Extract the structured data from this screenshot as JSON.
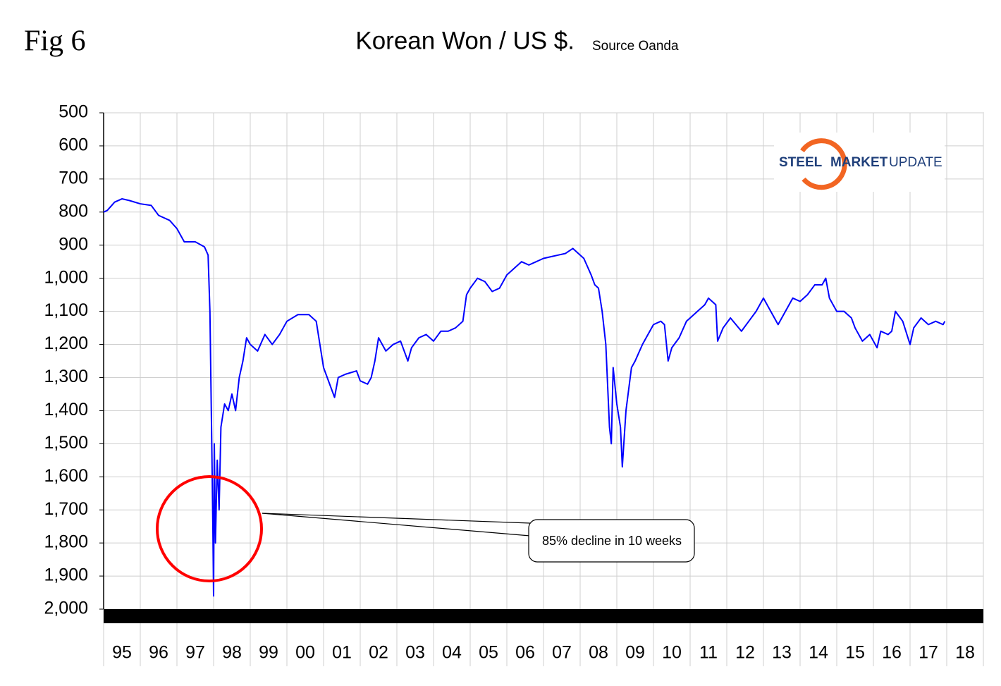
{
  "chart_data": {
    "type": "line",
    "label": "Fig 6",
    "title": "Korean Won / US $.",
    "subtitle": "Source Oanda",
    "annotation": "85% decline in 10 weeks",
    "logo": [
      "STEEL",
      "MARKET",
      "UPDATE"
    ],
    "y_inverted": true,
    "grid": true,
    "xlim": [
      1995,
      2019
    ],
    "ylim": [
      500,
      2000
    ],
    "yticks": [
      500,
      600,
      700,
      800,
      900,
      {
        "value": 1000,
        "label": "1,000"
      },
      {
        "value": 1100,
        "label": "1,100"
      },
      {
        "value": 1200,
        "label": "1,200"
      },
      {
        "value": 1300,
        "label": "1,300"
      },
      {
        "value": 1400,
        "label": "1,400"
      },
      {
        "value": 1500,
        "label": "1,500"
      },
      {
        "value": 1600,
        "label": "1,600"
      },
      {
        "value": 1700,
        "label": "1,700"
      },
      {
        "value": 1800,
        "label": "1,800"
      },
      {
        "value": 1900,
        "label": "1,900"
      },
      {
        "value": 2000,
        "label": "2,000"
      }
    ],
    "xticks": [
      {
        "value": 1995.5,
        "label": "95"
      },
      {
        "value": 1996.5,
        "label": "96"
      },
      {
        "value": 1997.5,
        "label": "97"
      },
      {
        "value": 1998.5,
        "label": "98"
      },
      {
        "value": 1999.5,
        "label": "99"
      },
      {
        "value": 2000.5,
        "label": "00"
      },
      {
        "value": 2001.5,
        "label": "01"
      },
      {
        "value": 2002.5,
        "label": "02"
      },
      {
        "value": 2003.5,
        "label": "03"
      },
      {
        "value": 2004.5,
        "label": "04"
      },
      {
        "value": 2005.5,
        "label": "05"
      },
      {
        "value": 2006.5,
        "label": "06"
      },
      {
        "value": 2007.5,
        "label": "07"
      },
      {
        "value": 2008.5,
        "label": "08"
      },
      {
        "value": 2009.5,
        "label": "09"
      },
      {
        "value": 2010.5,
        "label": "10"
      },
      {
        "value": 2011.5,
        "label": "11"
      },
      {
        "value": 2012.5,
        "label": "12"
      },
      {
        "value": 2013.5,
        "label": "13"
      },
      {
        "value": 2014.5,
        "label": "14"
      },
      {
        "value": 2015.5,
        "label": "15"
      },
      {
        "value": 2016.5,
        "label": "16"
      },
      {
        "value": 2017.5,
        "label": "17"
      },
      {
        "value": 2018.5,
        "label": "18"
      }
    ],
    "color": "#0000ff",
    "x": [
      1995.0,
      1995.1,
      1995.3,
      1995.5,
      1995.7,
      1996.0,
      1996.3,
      1996.5,
      1996.8,
      1997.0,
      1997.2,
      1997.5,
      1997.75,
      1997.85,
      1997.9,
      1997.95,
      1997.98,
      1998.0,
      1998.02,
      1998.05,
      1998.1,
      1998.15,
      1998.2,
      1998.3,
      1998.4,
      1998.5,
      1998.6,
      1998.7,
      1998.8,
      1998.9,
      1999.0,
      1999.2,
      1999.4,
      1999.6,
      1999.8,
      2000.0,
      2000.3,
      2000.6,
      2000.8,
      2000.9,
      2001.0,
      2001.1,
      2001.3,
      2001.4,
      2001.6,
      2001.9,
      2002.0,
      2002.2,
      2002.3,
      2002.4,
      2002.5,
      2002.7,
      2002.9,
      2003.1,
      2003.3,
      2003.4,
      2003.6,
      2003.8,
      2004.0,
      2004.2,
      2004.4,
      2004.6,
      2004.8,
      2004.9,
      2005.0,
      2005.2,
      2005.4,
      2005.6,
      2005.8,
      2006.0,
      2006.2,
      2006.4,
      2006.6,
      2006.8,
      2007.0,
      2007.2,
      2007.4,
      2007.6,
      2007.8,
      2007.9,
      2008.1,
      2008.3,
      2008.4,
      2008.5,
      2008.6,
      2008.7,
      2008.8,
      2008.85,
      2008.9,
      2009.0,
      2009.1,
      2009.15,
      2009.25,
      2009.4,
      2009.5,
      2009.7,
      2009.9,
      2010.0,
      2010.2,
      2010.3,
      2010.4,
      2010.5,
      2010.7,
      2010.9,
      2011.0,
      2011.2,
      2011.4,
      2011.5,
      2011.7,
      2011.75,
      2011.9,
      2012.1,
      2012.4,
      2012.6,
      2012.8,
      2013.0,
      2013.2,
      2013.4,
      2013.6,
      2013.8,
      2014.0,
      2014.2,
      2014.4,
      2014.6,
      2014.7,
      2014.8,
      2015.0,
      2015.2,
      2015.4,
      2015.5,
      2015.7,
      2015.9,
      2016.1,
      2016.2,
      2016.4,
      2016.5,
      2016.6,
      2016.8,
      2017.0,
      2017.1,
      2017.3,
      2017.5,
      2017.7,
      2017.9,
      2017.95
    ],
    "values": [
      800,
      795,
      770,
      760,
      765,
      775,
      780,
      810,
      825,
      850,
      890,
      890,
      905,
      930,
      1100,
      1500,
      1750,
      1960,
      1500,
      1800,
      1550,
      1700,
      1450,
      1380,
      1400,
      1350,
      1400,
      1300,
      1250,
      1180,
      1200,
      1220,
      1170,
      1200,
      1170,
      1130,
      1110,
      1110,
      1130,
      1200,
      1270,
      1300,
      1360,
      1300,
      1290,
      1280,
      1310,
      1320,
      1300,
      1250,
      1180,
      1220,
      1200,
      1190,
      1250,
      1210,
      1180,
      1170,
      1190,
      1160,
      1160,
      1150,
      1130,
      1050,
      1030,
      1000,
      1010,
      1040,
      1030,
      990,
      970,
      950,
      960,
      950,
      940,
      935,
      930,
      925,
      910,
      920,
      940,
      990,
      1020,
      1030,
      1100,
      1200,
      1450,
      1500,
      1270,
      1380,
      1450,
      1570,
      1400,
      1270,
      1250,
      1200,
      1160,
      1140,
      1130,
      1140,
      1250,
      1210,
      1180,
      1130,
      1120,
      1100,
      1080,
      1060,
      1080,
      1190,
      1150,
      1120,
      1160,
      1130,
      1100,
      1060,
      1100,
      1140,
      1100,
      1060,
      1070,
      1050,
      1020,
      1020,
      1000,
      1060,
      1100,
      1100,
      1120,
      1150,
      1190,
      1170,
      1210,
      1160,
      1170,
      1160,
      1100,
      1130,
      1200,
      1150,
      1120,
      1140,
      1130,
      1140,
      1130
    ]
  }
}
